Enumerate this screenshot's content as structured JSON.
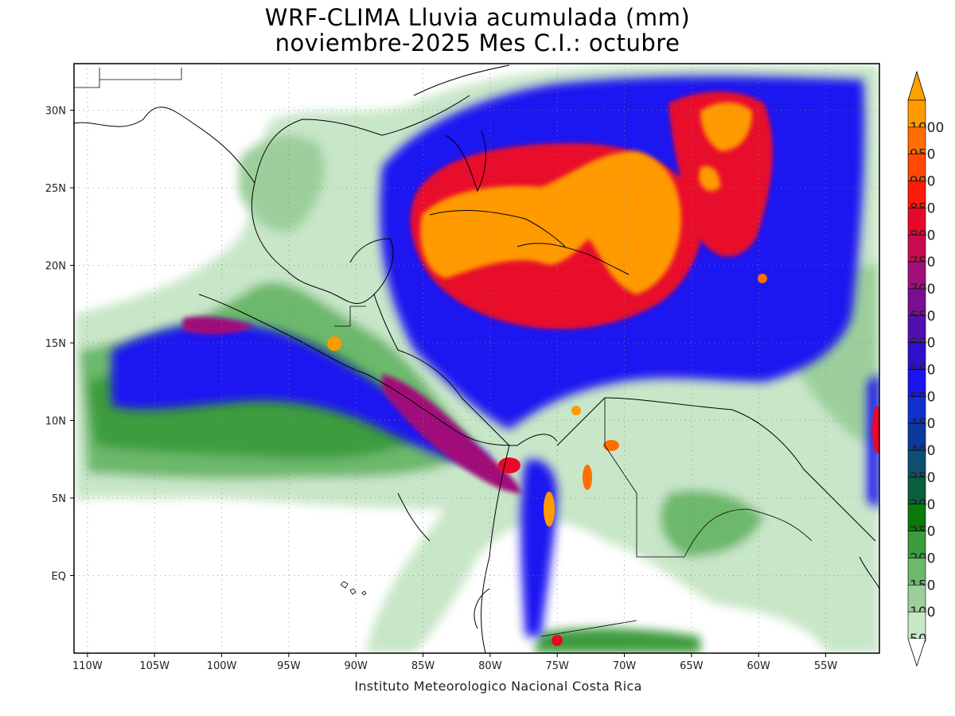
{
  "title": {
    "line1": "WRF-CLIMA Lluvia acumulada (mm)",
    "line2": "noviembre-2025 Mes C.I.: octubre"
  },
  "credit": "Instituto Meteorologico Nacional Costa Rica",
  "map": {
    "lon_range": [
      -111,
      -51
    ],
    "lat_range": [
      -5,
      33
    ],
    "lon_ticks": [
      {
        "value": -110,
        "label": "110W"
      },
      {
        "value": -105,
        "label": "105W"
      },
      {
        "value": -100,
        "label": "100W"
      },
      {
        "value": -95,
        "label": "95W"
      },
      {
        "value": -90,
        "label": "90W"
      },
      {
        "value": -85,
        "label": "85W"
      },
      {
        "value": -80,
        "label": "80W"
      },
      {
        "value": -75,
        "label": "75W"
      },
      {
        "value": -70,
        "label": "70W"
      },
      {
        "value": -65,
        "label": "65W"
      },
      {
        "value": -60,
        "label": "60W"
      },
      {
        "value": -55,
        "label": "55W"
      }
    ],
    "lat_ticks": [
      {
        "value": 30,
        "label": "30N"
      },
      {
        "value": 25,
        "label": "25N"
      },
      {
        "value": 20,
        "label": "20N"
      },
      {
        "value": 15,
        "label": "15N"
      },
      {
        "value": 10,
        "label": "10N"
      },
      {
        "value": 5,
        "label": "5N"
      },
      {
        "value": 0,
        "label": "EQ"
      }
    ],
    "grid": true
  },
  "colorbar": {
    "levels": [
      {
        "label": "50",
        "color": "#c8e6c8"
      },
      {
        "label": "100",
        "color": "#9ccf9c"
      },
      {
        "label": "150",
        "color": "#6cb86c"
      },
      {
        "label": "200",
        "color": "#3c9c3c"
      },
      {
        "label": "250",
        "color": "#0a7a0a"
      },
      {
        "label": "300",
        "color": "#0b5f3a"
      },
      {
        "label": "350",
        "color": "#0d4f6e"
      },
      {
        "label": "400",
        "color": "#0a3a9c"
      },
      {
        "label": "450",
        "color": "#1030d0"
      },
      {
        "label": "500",
        "color": "#1a14f0"
      },
      {
        "label": "550",
        "color": "#3010c8"
      },
      {
        "label": "600",
        "color": "#5010b0"
      },
      {
        "label": "650",
        "color": "#7a1090"
      },
      {
        "label": "700",
        "color": "#a0107a"
      },
      {
        "label": "750",
        "color": "#c80a50"
      },
      {
        "label": "800",
        "color": "#e8082a"
      },
      {
        "label": "850",
        "color": "#ff1a0a"
      },
      {
        "label": "900",
        "color": "#ff4a00"
      },
      {
        "label": "950",
        "color": "#ff6e00"
      },
      {
        "label": "1000",
        "color": "#ff9a00"
      }
    ],
    "top_arrow_color": "#ffa000"
  }
}
